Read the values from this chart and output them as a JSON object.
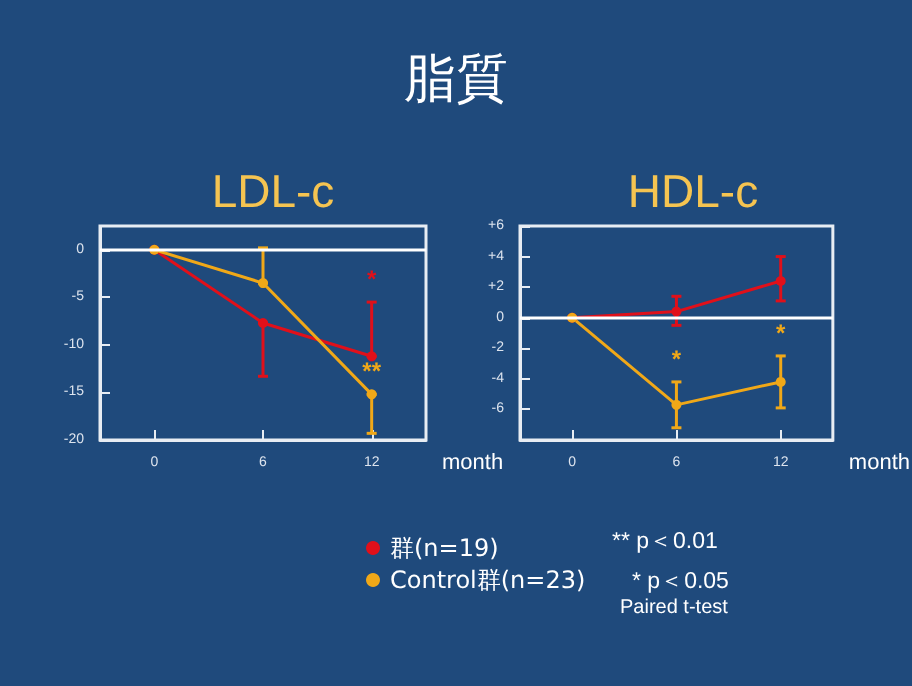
{
  "chart_data": [
    {
      "type": "other",
      "title": "脂質",
      "annotations": [
        "** p＜0.01",
        "* p＜0.05",
        "Paired t-test"
      ]
    },
    {
      "type": "line",
      "title": "LDL-c",
      "xlabel": "month",
      "x": [
        0,
        6,
        12
      ],
      "xlim": [
        -3,
        15
      ],
      "xticks": [
        0,
        6,
        12
      ],
      "ylim": [
        -20,
        2.5
      ],
      "yticks": [
        -20,
        -15,
        -10,
        -5,
        0
      ],
      "marker": "circle",
      "legend": "bottom",
      "ref_lines": [
        {
          "axis": "y",
          "value": 0,
          "color": "#ffffff"
        }
      ],
      "series": [
        {
          "name": "群(n=19)",
          "color": "#e0101a",
          "values": [
            0,
            -7.7,
            -11.2
          ],
          "errors": [
            null,
            [
              -13.3,
              -7.7
            ],
            [
              -11.2,
              -5.5
            ]
          ],
          "value_labels": [
            null,
            null,
            "*"
          ]
        },
        {
          "name": "Control群(n=23)",
          "color": "#f0a818",
          "values": [
            0,
            -3.5,
            -15.2
          ],
          "errors": [
            null,
            [
              -3.5,
              0.2
            ],
            [
              -19.3,
              -15.2
            ]
          ],
          "value_labels": [
            null,
            null,
            "**"
          ]
        }
      ]
    },
    {
      "type": "line",
      "title": "HDL-c",
      "xlabel": "month",
      "x": [
        0,
        6,
        12
      ],
      "xlim": [
        -3,
        15
      ],
      "xticks": [
        0,
        6,
        12
      ],
      "ylim": [
        -8,
        6
      ],
      "yticks": [
        {
          "value": -6,
          "label": "-6"
        },
        {
          "value": -4,
          "label": "-4"
        },
        {
          "value": -2,
          "label": "-2"
        },
        {
          "value": 0,
          "label": "0"
        },
        {
          "value": 2,
          "label": "+2"
        },
        {
          "value": 4,
          "label": "+4"
        },
        {
          "value": 6,
          "label": "+6"
        }
      ],
      "marker": "circle",
      "ref_lines": [
        {
          "axis": "y",
          "value": 0,
          "color": "#ffffff"
        }
      ],
      "series": [
        {
          "color": "#e0101a",
          "values": [
            0,
            0.4,
            2.4
          ],
          "errors": [
            null,
            [
              -0.5,
              1.4
            ],
            [
              1.1,
              4.0
            ]
          ]
        },
        {
          "color": "#f0a818",
          "values": [
            0,
            -5.7,
            -4.2
          ],
          "errors": [
            null,
            [
              -7.2,
              -4.2
            ],
            [
              -5.9,
              -2.5
            ]
          ],
          "value_labels": [
            null,
            "*",
            "*"
          ]
        }
      ]
    }
  ]
}
